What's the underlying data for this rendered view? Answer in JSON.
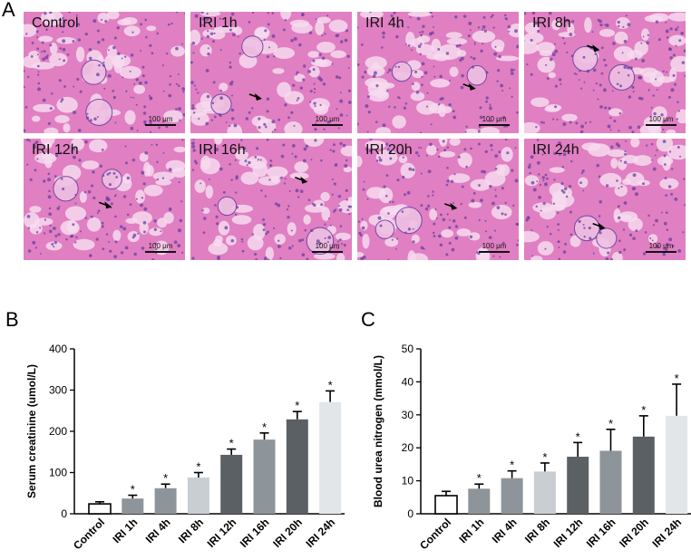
{
  "figure": {
    "panel_labels": [
      "A",
      "B",
      "C"
    ]
  },
  "micrographs": {
    "tiles": [
      {
        "label": "Control",
        "scale": "100 μm",
        "arrow": false
      },
      {
        "label": "IRI 1h",
        "scale": "100 μm",
        "arrow": true
      },
      {
        "label": "IRI 4h",
        "scale": "100 μm",
        "arrow": true
      },
      {
        "label": "IRI 8h",
        "scale": "100 μm",
        "arrow": true
      },
      {
        "label": "IRI 12h",
        "scale": "100 μm",
        "arrow": true
      },
      {
        "label": "IRI 16h",
        "scale": "100 μm",
        "arrow": true
      },
      {
        "label": "IRI 20h",
        "scale": "100 μm",
        "arrow": true
      },
      {
        "label": "IRI 24h",
        "scale": "100 μm",
        "arrow": true
      }
    ],
    "colors": {
      "tissue": "#e07fc2",
      "lumen": "#f6dbef",
      "nuclei": "#6a3f9f"
    }
  },
  "chart_data": [
    {
      "type": "bar",
      "panel": "B",
      "categories": [
        "Control",
        "IRI 1h",
        "IRI 4h",
        "IRI 8h",
        "IRI 12h",
        "IRI 16h",
        "IRI 20h",
        "IRI 24h"
      ],
      "values": [
        24,
        37,
        62,
        88,
        143,
        180,
        229,
        271
      ],
      "errors": [
        5,
        8,
        10,
        12,
        14,
        16,
        19,
        27
      ],
      "significance": [
        "",
        "*",
        "*",
        "*",
        "*",
        "*",
        "*",
        "*"
      ],
      "bar_colors": [
        "#ffffff",
        "#8e959a",
        "#8e959a",
        "#c9ced2",
        "#5b6064",
        "#8e959a",
        "#5b6064",
        "#e3e6e8"
      ],
      "xlabel": "",
      "ylabel": "Serum creatinine (umol/L)",
      "ylim": [
        0,
        400
      ],
      "yticks": [
        0,
        100,
        200,
        300,
        400
      ]
    },
    {
      "type": "bar",
      "panel": "C",
      "categories": [
        "Control",
        "IRI 1h",
        "IRI 4h",
        "IRI 8h",
        "IRI 12h",
        "IRI 16h",
        "IRI 20h",
        "IRI 24h"
      ],
      "values": [
        5.5,
        7.6,
        10.8,
        12.8,
        17.3,
        19.1,
        23.4,
        29.7
      ],
      "errors": [
        1.3,
        1.4,
        2.2,
        2.6,
        4.3,
        6.5,
        6.3,
        9.6
      ],
      "significance": [
        "",
        "*",
        "*",
        "*",
        "*",
        "*",
        "*",
        "*"
      ],
      "bar_colors": [
        "#ffffff",
        "#8e959a",
        "#8e959a",
        "#c9ced2",
        "#5b6064",
        "#8e959a",
        "#5b6064",
        "#e3e6e8"
      ],
      "xlabel": "",
      "ylabel": "Blood urea nitrogen (mmol/L)",
      "ylim": [
        0,
        50
      ],
      "yticks": [
        0,
        10,
        20,
        30,
        40,
        50
      ]
    }
  ]
}
